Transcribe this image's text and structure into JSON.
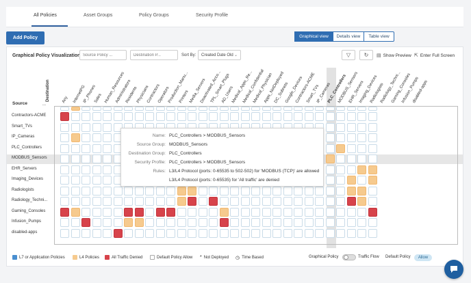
{
  "tabs": [
    "All Policies",
    "Asset Groups",
    "Policy Groups",
    "Security Profile"
  ],
  "add_policy_label": "Add Policy",
  "views": {
    "graphical": "Graphical view",
    "details": "Details view",
    "table": "Table view"
  },
  "viz": {
    "title": "Graphical Policy Visualization",
    "source_policy_placeholder": "Source Policy ...",
    "destination_placeholder": "Destination P...",
    "sort_label": "Sort By:",
    "sort_value": "Created Date Old",
    "show_preview": "Show Preview",
    "full_screen": "Enter Full Screen"
  },
  "axis": {
    "source": "Source",
    "destination": "Destination"
  },
  "columns": [
    "Any",
    "InternetPG",
    "IP_Phones",
    "Sales",
    "Human_Resources",
    "Administrators",
    "Residents",
    "Physicians",
    "Contractors",
    "Operators",
    "Production_Manu...",
    "Printers",
    "Media_Servers",
    "Deactivated_Acco...",
    "TPL_Smart_Plugs",
    "AD_Users",
    "Medical_Apps_Re...",
    "Medical_Confidential",
    "Medical_Physician",
    "Apps_NotDeployed",
    "DC_Subnets",
    "Google_Devices",
    "Contractors-ACME",
    "Smart_TVs",
    "IP_Cameras",
    "PLC_Controllers",
    "MODBUS_Sensors",
    "EHR_Servers",
    "Imaging_Devices",
    "Radiologists",
    "Radiology_Techni...",
    "Gaming_Consoles",
    "Infusion_Pumps",
    "disabled-apps"
  ],
  "rows": [
    "Contractors-ACME",
    "Smart_TVs",
    "IP_Cameras",
    "PLC_Controllers",
    "MODBUS_Sensors",
    "EHR_Servers",
    "Imaging_Devices",
    "Radiologists",
    "Radiology_Techni...",
    "Gaming_Consoles",
    "Infusion_Pumps",
    "disabled-apps"
  ],
  "cut_row": "...",
  "highlight": {
    "row": "MODBUS_Sensors",
    "column": "PLC_Controllers"
  },
  "cells": [
    {
      "r": -1,
      "c": 1,
      "t": "l4"
    },
    {
      "r": 0,
      "c": 0,
      "t": "denied"
    },
    {
      "r": 2,
      "c": 1,
      "t": "l4"
    },
    {
      "r": 3,
      "c": 26,
      "t": "l4"
    },
    {
      "r": 4,
      "c": 25,
      "t": "l4"
    },
    {
      "r": 5,
      "c": 28,
      "t": "l4"
    },
    {
      "r": 5,
      "c": 29,
      "t": "l4"
    },
    {
      "r": 5,
      "c": 30,
      "t": "denied"
    },
    {
      "r": 6,
      "c": 27,
      "t": "l4"
    },
    {
      "r": 6,
      "c": 29,
      "t": "l4"
    },
    {
      "r": 7,
      "c": 11,
      "t": "l4"
    },
    {
      "r": 7,
      "c": 12,
      "t": "l4"
    },
    {
      "r": 7,
      "c": 27,
      "t": "l4"
    },
    {
      "r": 7,
      "c": 28,
      "t": "l4"
    },
    {
      "r": 7,
      "c": 31,
      "t": "denied"
    },
    {
      "r": 8,
      "c": 11,
      "t": "l4"
    },
    {
      "r": 8,
      "c": 12,
      "t": "denied"
    },
    {
      "r": 8,
      "c": 14,
      "t": "denied"
    },
    {
      "r": 8,
      "c": 27,
      "t": "denied"
    },
    {
      "r": 8,
      "c": 28,
      "t": "l4"
    },
    {
      "r": 8,
      "c": 30,
      "t": "denied"
    },
    {
      "r": 8,
      "c": 31,
      "t": "denied"
    },
    {
      "r": 9,
      "c": 0,
      "t": "denied"
    },
    {
      "r": 9,
      "c": 1,
      "t": "l4"
    },
    {
      "r": 9,
      "c": 6,
      "t": "denied"
    },
    {
      "r": 9,
      "c": 7,
      "t": "denied"
    },
    {
      "r": 9,
      "c": 9,
      "t": "denied"
    },
    {
      "r": 9,
      "c": 10,
      "t": "denied"
    },
    {
      "r": 9,
      "c": 15,
      "t": "l4"
    },
    {
      "r": 9,
      "c": 29,
      "t": "denied"
    },
    {
      "r": 9,
      "c": 30,
      "t": "denied"
    },
    {
      "r": 10,
      "c": 2,
      "t": "denied"
    },
    {
      "r": 10,
      "c": 6,
      "t": "l4"
    },
    {
      "r": 10,
      "c": 7,
      "t": "l4"
    },
    {
      "r": 10,
      "c": 15,
      "t": "denied"
    },
    {
      "r": 11,
      "c": 5,
      "t": "denied"
    }
  ],
  "tooltip": [
    {
      "k": "Name:",
      "v": "PLC_Controllers > MODBUS_Sensors"
    },
    {
      "k": "Source Group:",
      "v": "MODBUS_Sensors"
    },
    {
      "k": "Destination Group:",
      "v": "PLC_Controllers"
    },
    {
      "k": "Security Profile:",
      "v": "PLC_Controllers > MODBUS_Sensors"
    },
    {
      "k": "Rules:",
      "v": "L3/L4 Protocol (ports: 0-65535 to 502-502) for 'MODBUS (TCP)' are allowed"
    },
    {
      "k": "",
      "v": "L3/L4 Protocol (ports: 0-65535) for 'All traffic' are denied"
    }
  ],
  "legend": {
    "l7": "L7 or Application Policies",
    "l4": "L4 Policies",
    "denied": "All Traffic Denied",
    "default_allow": "Default Policy Allow",
    "not_deployed": "Not Deployed",
    "time_based": "Time Based",
    "graphical_policy": "Graphical Policy",
    "traffic_flow": "Traffic Flow",
    "default_policy": "Default Policy",
    "default_policy_value": "Allow"
  },
  "colors": {
    "l7": "#4a8fd0",
    "l4": "#f6ca8e",
    "denied": "#d7434b",
    "accent": "#2f6db2"
  }
}
